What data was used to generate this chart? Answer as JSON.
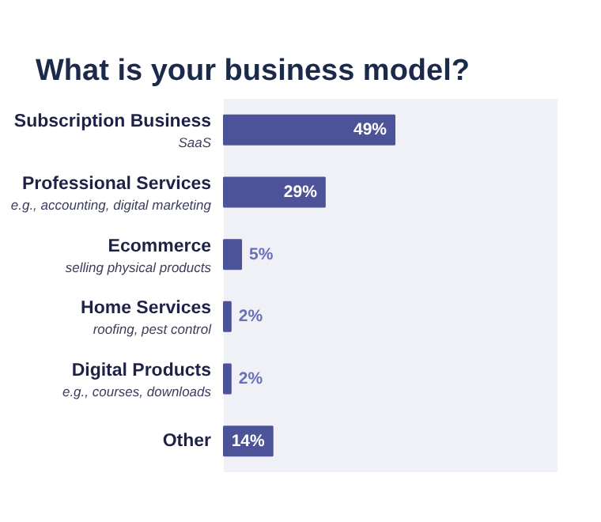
{
  "chart_data": {
    "type": "bar",
    "orientation": "horizontal",
    "title": "What is your business model?",
    "categories": [
      "Subscription Business\nSaaS",
      "Professional Services\ne.g., accounting, digital marketing",
      "Ecommerce\nselling physical products",
      "Home Services\nroofing, pest control",
      "Digital Products\ne.g., courses, downloads",
      "Other"
    ],
    "values": [
      49,
      29,
      5,
      2,
      2,
      14
    ],
    "value_labels": [
      "49%",
      "29%",
      "5%",
      "2%",
      "2%",
      "14%"
    ],
    "color": "#4d5399",
    "grid": false
  }
}
